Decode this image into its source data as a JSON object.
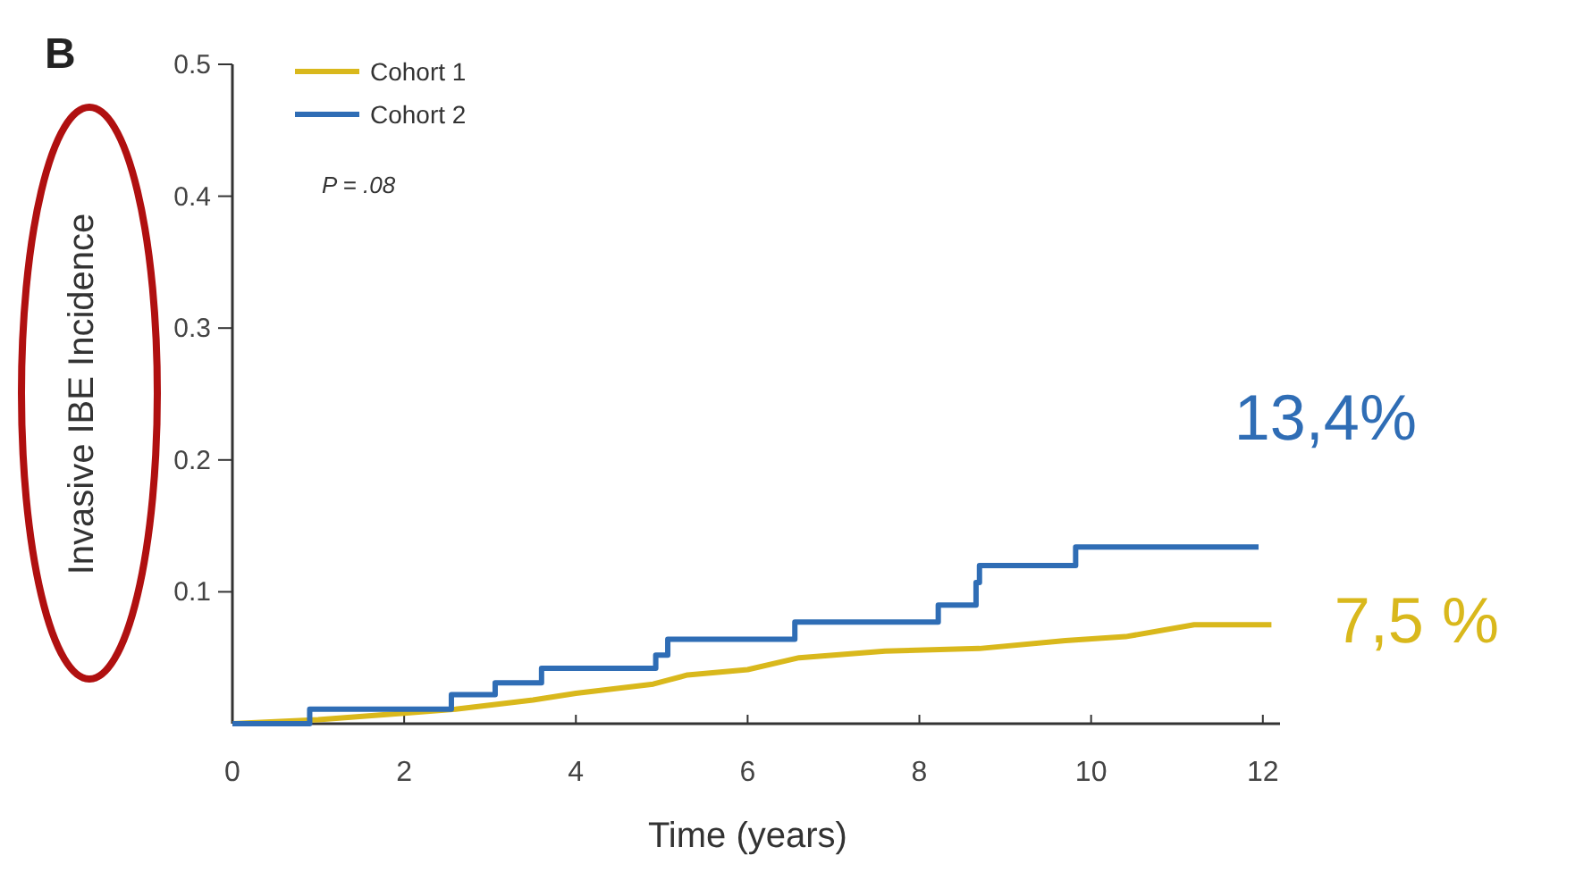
{
  "chart_data": {
    "type": "step",
    "title": "B",
    "xlabel": "Time (years)",
    "ylabel": "Invasive IBE Incidence",
    "xlim": [
      0,
      12.2
    ],
    "xticks": [
      0,
      2,
      4,
      6,
      8,
      10,
      12
    ],
    "ylim": [
      0,
      0.5
    ],
    "yticks": [
      0.1,
      0.2,
      0.3,
      0.4,
      0.5
    ],
    "legend": "top left",
    "grid": false,
    "series": [
      {
        "name": "Cohort 1",
        "color": "#d9b81c",
        "type": "line",
        "x": [
          0,
          1,
          2,
          2.6,
          3.5,
          4,
          4.9,
          5.3,
          6,
          6.6,
          7.6,
          8.7,
          9.7,
          10.4,
          11.2,
          12.1
        ],
        "values": [
          0,
          0.003,
          0.008,
          0.011,
          0.018,
          0.023,
          0.03,
          0.037,
          0.041,
          0.05,
          0.055,
          0.057,
          0.063,
          0.066,
          0.075,
          0.075
        ]
      },
      {
        "name": "Cohort 2",
        "color": "#2f6db5",
        "x": [
          0,
          0.9,
          2.55,
          3.06,
          3.6,
          4.93,
          5.07,
          6.55,
          8.22,
          8.66,
          8.7,
          9.82,
          11.95
        ],
        "values": [
          0,
          0.011,
          0.022,
          0.031,
          0.042,
          0.052,
          0.064,
          0.077,
          0.09,
          0.107,
          0.12,
          0.134,
          0.134
        ]
      }
    ],
    "annotations": [
      "P = .08",
      {
        "text": "13,4%",
        "x": 12,
        "y": 0.134
      },
      {
        "text": "7,5 %",
        "x": 12,
        "y": 0.075
      }
    ]
  }
}
